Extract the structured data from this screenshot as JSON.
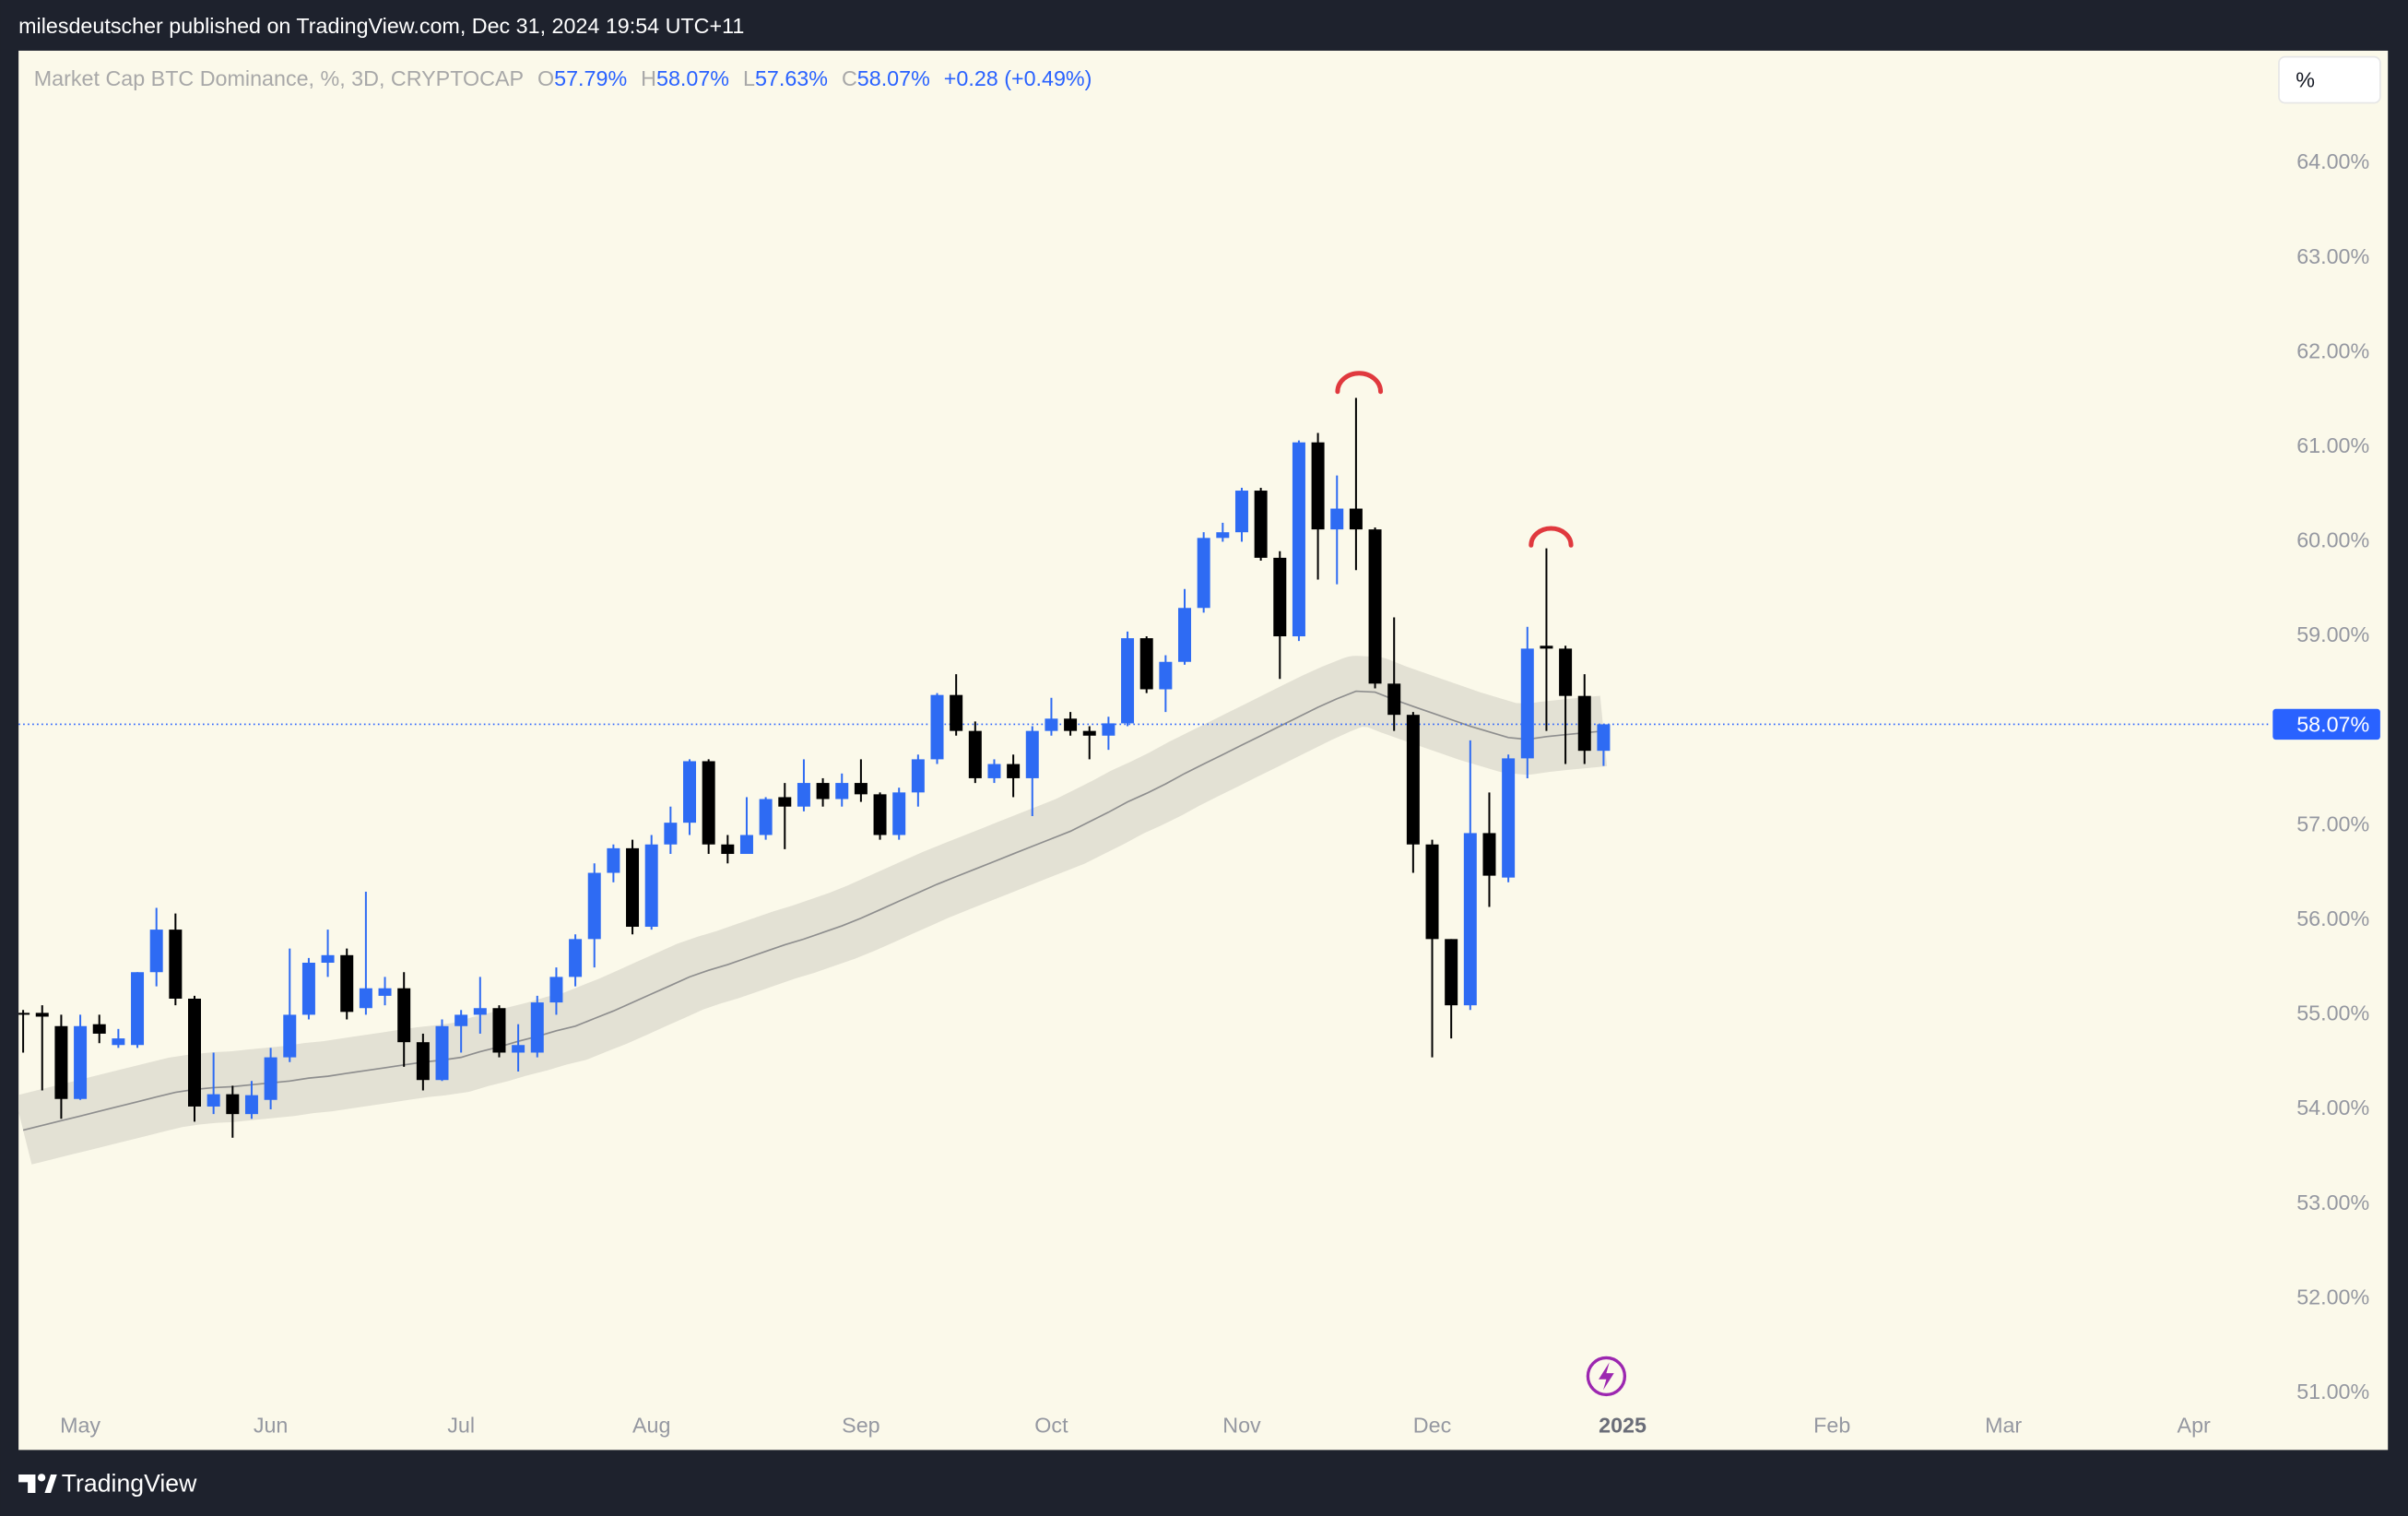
{
  "header": {
    "published": "milesdeutscher published on TradingView.com, Dec 31, 2024 19:54 UTC+11"
  },
  "toolbar": {
    "scale_button": "%"
  },
  "footer": {
    "brand": "TradingView"
  },
  "chart_data": {
    "type": "candlestick",
    "legend": {
      "name": "Market Cap BTC Dominance, %, 3D, CRYPTOCAP",
      "ohlc": [
        {
          "key": "O",
          "value": "57.79%"
        },
        {
          "key": "H",
          "value": "58.07%"
        },
        {
          "key": "L",
          "value": "57.63%"
        },
        {
          "key": "C",
          "value": "58.07%"
        }
      ],
      "change": "+0.28 (+0.49%)"
    },
    "categories": [
      null,
      null,
      null,
      "May",
      null,
      null,
      null,
      null,
      null,
      null,
      null,
      null,
      null,
      "Jun",
      null,
      null,
      null,
      null,
      null,
      null,
      null,
      null,
      null,
      "Jul",
      null,
      null,
      null,
      null,
      null,
      null,
      null,
      null,
      null,
      "Aug",
      null,
      null,
      null,
      null,
      null,
      null,
      null,
      null,
      null,
      null,
      "Sep",
      null,
      null,
      null,
      null,
      null,
      null,
      null,
      null,
      null,
      "Oct",
      null,
      null,
      null,
      null,
      null,
      null,
      null,
      null,
      null,
      "Nov",
      null,
      null,
      null,
      null,
      null,
      null,
      null,
      null,
      null,
      "Dec",
      null,
      null,
      null,
      null,
      null,
      null,
      null,
      null,
      null,
      "2025",
      null,
      null,
      null,
      null,
      null,
      null,
      null,
      null,
      null,
      null,
      "Feb",
      null,
      null,
      null,
      null,
      null,
      null,
      null,
      null,
      "Mar",
      null,
      null,
      null,
      null,
      null,
      null,
      null,
      null,
      null,
      "Apr",
      null,
      null,
      null
    ],
    "open": [
      55.02,
      55.02,
      54.88,
      54.11,
      54.9,
      54.68,
      54.68,
      55.45,
      55.9,
      55.17,
      54.03,
      54.16,
      53.95,
      54.1,
      54.55,
      55.0,
      55.55,
      55.63,
      55.07,
      55.2,
      55.28,
      54.71,
      54.31,
      54.88,
      55.0,
      55.07,
      54.6,
      54.6,
      55.13,
      55.4,
      55.8,
      56.5,
      56.76,
      55.93,
      56.8,
      57.03,
      57.68,
      56.8,
      56.7,
      56.9,
      57.3,
      57.2,
      57.45,
      57.28,
      57.45,
      57.33,
      56.9,
      57.35,
      57.7,
      58.38,
      58.0,
      57.5,
      57.65,
      57.5,
      58.0,
      58.13,
      58.0,
      57.95,
      58.08,
      58.98,
      58.44,
      58.73,
      59.3,
      60.04,
      60.1,
      60.54,
      59.83,
      59.0,
      61.05,
      60.13,
      60.35,
      60.13,
      58.5,
      58.17,
      56.8,
      55.8,
      55.1,
      56.92,
      56.45,
      57.71,
      58.9,
      58.87,
      58.37,
      57.79,
      null,
      null,
      null,
      null,
      null,
      null,
      null,
      null,
      null,
      null,
      null,
      null,
      null,
      null,
      null,
      null,
      null,
      null,
      null,
      null,
      null,
      null,
      null,
      null,
      null,
      null,
      null,
      null,
      null,
      null,
      null,
      null,
      null,
      null
    ],
    "high": [
      55.05,
      55.1,
      55.0,
      55.0,
      55.0,
      54.85,
      55.45,
      56.13,
      56.07,
      55.2,
      54.6,
      54.25,
      54.3,
      54.65,
      55.7,
      55.6,
      55.9,
      55.7,
      56.3,
      55.4,
      55.45,
      54.8,
      54.95,
      55.05,
      55.4,
      55.1,
      54.9,
      55.2,
      55.5,
      55.85,
      56.6,
      56.8,
      56.85,
      56.9,
      57.2,
      57.7,
      57.7,
      56.9,
      57.3,
      57.3,
      57.45,
      57.7,
      57.5,
      57.55,
      57.7,
      57.35,
      57.4,
      57.75,
      58.4,
      58.6,
      58.1,
      57.7,
      57.75,
      58.05,
      58.35,
      58.2,
      58.05,
      58.15,
      59.05,
      59.0,
      58.8,
      59.5,
      60.1,
      60.2,
      60.57,
      60.57,
      59.9,
      61.07,
      61.15,
      60.7,
      61.52,
      60.15,
      59.2,
      58.2,
      56.85,
      55.8,
      57.9,
      57.35,
      57.75,
      59.1,
      59.93,
      58.9,
      58.6,
      58.07,
      null,
      null,
      null,
      null,
      null,
      null,
      null,
      null,
      null,
      null,
      null,
      null,
      null,
      null,
      null,
      null,
      null,
      null,
      null,
      null,
      null,
      null,
      null,
      null,
      null,
      null,
      null,
      null,
      null,
      null,
      null,
      null,
      null,
      null
    ],
    "low": [
      54.6,
      54.2,
      53.9,
      54.1,
      54.7,
      54.65,
      54.65,
      55.3,
      55.1,
      53.87,
      53.95,
      53.7,
      53.9,
      54.0,
      54.5,
      54.95,
      55.4,
      54.95,
      55.0,
      55.1,
      54.45,
      54.2,
      54.3,
      54.6,
      54.8,
      54.55,
      54.4,
      54.55,
      55.0,
      55.3,
      55.5,
      56.4,
      55.85,
      55.9,
      56.7,
      56.9,
      56.7,
      56.6,
      56.7,
      56.85,
      56.75,
      57.15,
      57.2,
      57.2,
      57.25,
      56.85,
      56.85,
      57.2,
      57.65,
      57.95,
      57.45,
      57.45,
      57.3,
      57.1,
      57.95,
      57.95,
      57.7,
      57.8,
      58.05,
      58.4,
      58.2,
      58.7,
      59.25,
      60.0,
      60.0,
      59.8,
      58.55,
      58.95,
      59.6,
      59.55,
      59.7,
      58.45,
      58.0,
      56.5,
      54.55,
      54.75,
      55.05,
      56.14,
      56.4,
      57.5,
      58.0,
      57.65,
      57.65,
      57.63,
      null,
      null,
      null,
      null,
      null,
      null,
      null,
      null,
      null,
      null,
      null,
      null,
      null,
      null,
      null,
      null,
      null,
      null,
      null,
      null,
      null,
      null,
      null,
      null,
      null,
      null,
      null,
      null,
      null,
      null,
      null,
      null,
      null,
      null
    ],
    "close": [
      55.0,
      54.98,
      54.11,
      54.88,
      54.8,
      54.75,
      55.45,
      55.9,
      55.17,
      54.03,
      54.16,
      53.95,
      54.15,
      54.55,
      55.0,
      55.55,
      55.63,
      55.03,
      55.28,
      55.28,
      54.71,
      54.31,
      54.88,
      55.0,
      55.07,
      54.6,
      54.68,
      55.13,
      55.4,
      55.8,
      56.5,
      56.76,
      55.93,
      56.8,
      57.03,
      57.68,
      56.8,
      56.7,
      56.9,
      57.28,
      57.2,
      57.45,
      57.28,
      57.45,
      57.33,
      56.9,
      57.35,
      57.7,
      58.38,
      58.0,
      57.5,
      57.65,
      57.5,
      58.0,
      58.13,
      58.0,
      57.95,
      58.08,
      58.98,
      58.44,
      58.73,
      59.3,
      60.04,
      60.1,
      60.54,
      59.83,
      59.0,
      61.05,
      60.13,
      60.35,
      60.13,
      58.5,
      58.17,
      56.8,
      55.8,
      55.1,
      56.92,
      56.47,
      57.71,
      58.87,
      58.87,
      58.37,
      57.79,
      58.07,
      null,
      null,
      null,
      null,
      null,
      null,
      null,
      null,
      null,
      null,
      null,
      null,
      null,
      null,
      null,
      null,
      null,
      null,
      null,
      null,
      null,
      null,
      null,
      null,
      null,
      null,
      null,
      null,
      null,
      null,
      null,
      null,
      null,
      null
    ],
    "ma": [
      53.78,
      53.83,
      53.88,
      53.93,
      53.98,
      54.03,
      54.08,
      54.13,
      54.18,
      54.21,
      54.23,
      54.24,
      54.26,
      54.28,
      54.3,
      54.33,
      54.35,
      54.38,
      54.41,
      54.44,
      54.47,
      54.5,
      54.52,
      54.55,
      54.61,
      54.66,
      54.72,
      54.77,
      54.83,
      54.88,
      54.96,
      55.04,
      55.13,
      55.22,
      55.31,
      55.4,
      55.47,
      55.53,
      55.6,
      55.67,
      55.74,
      55.8,
      55.87,
      55.94,
      56.02,
      56.11,
      56.2,
      56.29,
      56.38,
      56.46,
      56.54,
      56.62,
      56.7,
      56.78,
      56.86,
      56.94,
      57.04,
      57.14,
      57.25,
      57.34,
      57.44,
      57.55,
      57.65,
      57.75,
      57.85,
      57.95,
      58.05,
      58.15,
      58.25,
      58.34,
      58.42,
      58.41,
      58.33,
      58.26,
      58.19,
      58.12,
      58.05,
      57.99,
      57.93,
      57.91,
      57.94,
      57.96,
      57.98,
      58.0,
      null,
      null,
      null,
      null,
      null,
      null,
      null,
      null,
      null,
      null,
      null,
      null,
      null,
      null,
      null,
      null,
      null,
      null,
      null,
      null,
      null,
      null,
      null,
      null,
      null,
      null,
      null,
      null,
      null,
      null,
      null,
      null,
      null,
      null
    ],
    "up_color": "#2e6bf3",
    "down_color": "#000000",
    "ma_color": "#8e8e8e",
    "band_color": "#e3e1d4",
    "last_price": 58.07,
    "last_price_label": "58.07%",
    "last_price_color": "#2962ff",
    "ylim": [
      50.4,
      65.19
    ],
    "yticks": [
      {
        "value": 64,
        "label": "64.00%"
      },
      {
        "value": 63,
        "label": "63.00%"
      },
      {
        "value": 62,
        "label": "62.00%"
      },
      {
        "value": 61,
        "label": "61.00%"
      },
      {
        "value": 60,
        "label": "60.00%"
      },
      {
        "value": 59,
        "label": "59.00%"
      },
      {
        "value": 57,
        "label": "57.00%"
      },
      {
        "value": 56,
        "label": "56.00%"
      },
      {
        "value": 55,
        "label": "55.00%"
      },
      {
        "value": 54,
        "label": "54.00%"
      },
      {
        "value": 53,
        "label": "53.00%"
      },
      {
        "value": 52,
        "label": "52.00%"
      },
      {
        "value": 51,
        "label": "51.00%"
      }
    ],
    "grid": false
  }
}
